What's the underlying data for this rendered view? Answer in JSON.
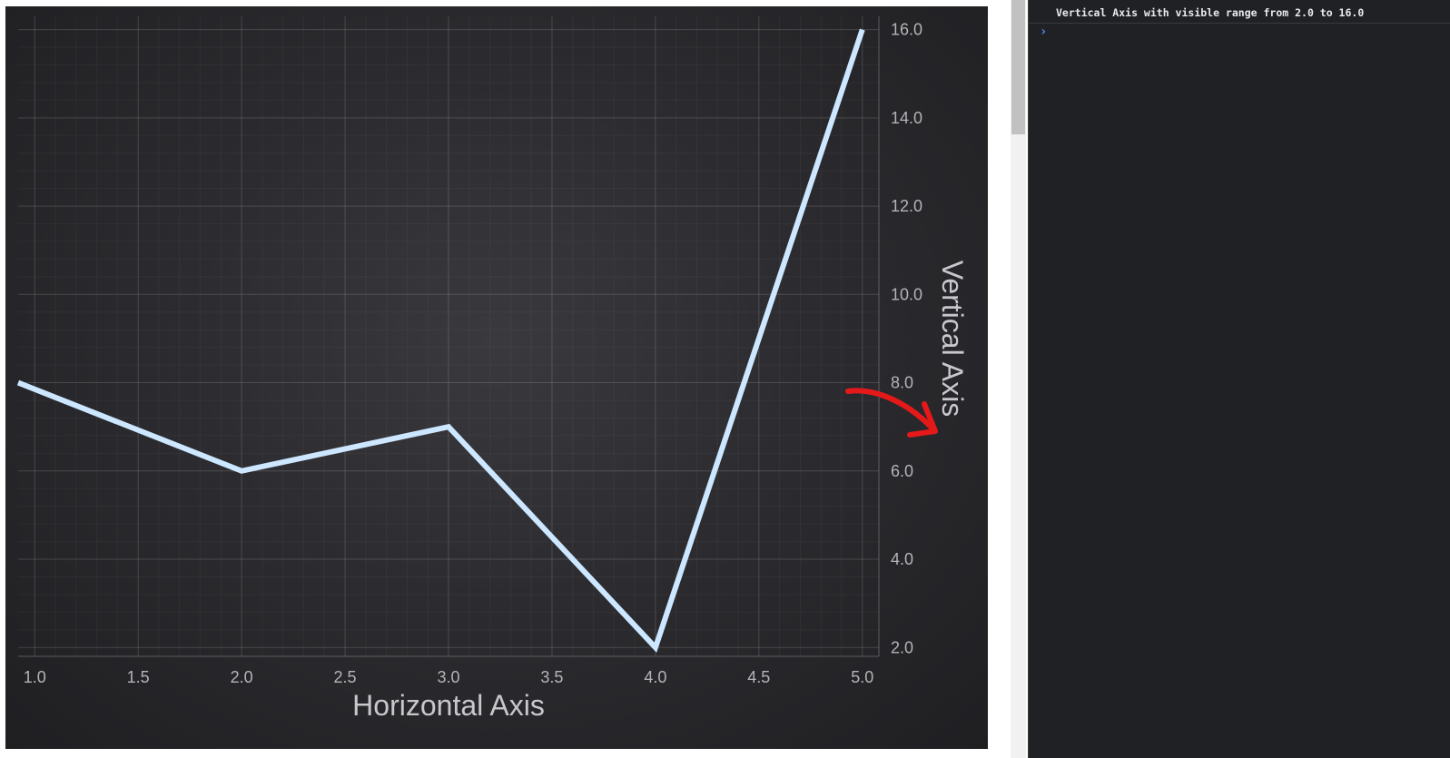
{
  "chart_data": {
    "type": "line",
    "xlabel": "Horizontal Axis",
    "ylabel": "Vertical Axis",
    "xlim": [
      0.92,
      5.08
    ],
    "ylim": [
      1.8,
      16.3
    ],
    "x_ticks": [
      1.0,
      1.5,
      2.0,
      2.5,
      3.0,
      3.5,
      4.0,
      4.5,
      5.0
    ],
    "y_ticks": [
      2.0,
      4.0,
      6.0,
      8.0,
      10.0,
      12.0,
      14.0,
      16.0
    ],
    "y_axis_position": "right",
    "grid": true,
    "series": [
      {
        "x": [
          0.92,
          2.0,
          3.0,
          4.0,
          5.0
        ],
        "y": [
          8.0,
          6.0,
          7.0,
          2.0,
          16.0
        ],
        "color": "#cce7ff"
      }
    ]
  },
  "annotation": {
    "type": "red-arrow-icon",
    "color": "#e51919"
  },
  "console": {
    "message": "Vertical Axis with visible range from 2.0 to 16.0",
    "prompt": "›"
  }
}
